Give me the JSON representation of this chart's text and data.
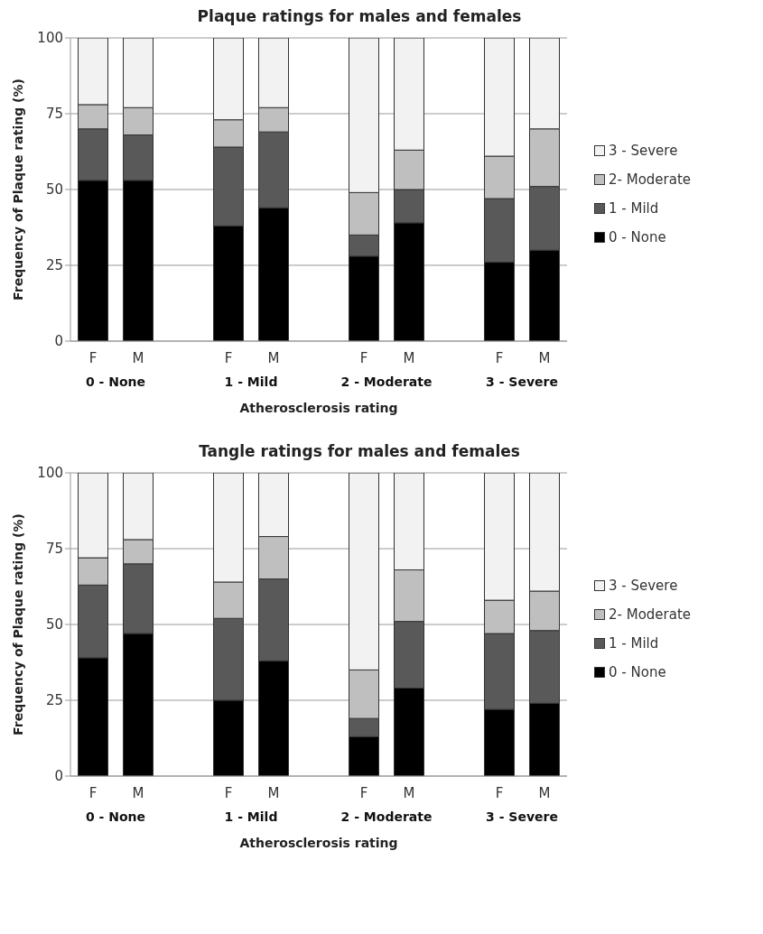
{
  "chart_data": [
    {
      "type": "bar",
      "title": "Plaque  ratings for males and females",
      "xlabel": "Atherosclerosis rating",
      "ylabel": "Frequency of Plaque rating (%)",
      "categories": [
        "F",
        "M",
        "F",
        "M",
        "F",
        "M",
        "F",
        "M"
      ],
      "stacked": true,
      "ylim": [
        0,
        100
      ],
      "yticks": [
        0,
        25,
        50,
        75,
        100
      ],
      "grid": "y",
      "legend": "right",
      "annotations": [
        "0 - None",
        "1 - Mild",
        "2 - Moderate",
        "3 - Severe"
      ],
      "series": [
        {
          "name": "0 - None",
          "color": "#000000",
          "values": [
            53,
            53,
            38,
            44,
            28,
            39,
            26,
            30
          ]
        },
        {
          "name": "1 - Mild",
          "color": "#595959",
          "values": [
            17,
            15,
            26,
            25,
            7,
            11,
            21,
            21
          ]
        },
        {
          "name": "2- Moderate",
          "color": "#bfbfbf",
          "values": [
            8,
            9,
            9,
            8,
            14,
            13,
            14,
            19
          ]
        },
        {
          "name": "3 - Severe",
          "color": "#f2f2f2",
          "values": [
            22,
            23,
            27,
            23,
            51,
            37,
            39,
            30
          ]
        }
      ]
    },
    {
      "type": "bar",
      "title": "Tangle  ratings for males and females",
      "xlabel": "Atherosclerosis rating",
      "ylabel": "Frequency of Plaque rating (%)",
      "categories": [
        "F",
        "M",
        "F",
        "M",
        "F",
        "M",
        "F",
        "M"
      ],
      "stacked": true,
      "ylim": [
        0,
        100
      ],
      "yticks": [
        0,
        25,
        50,
        75,
        100
      ],
      "grid": "y",
      "legend": "right",
      "annotations": [
        "0 - None",
        "1 - Mild",
        "2 - Moderate",
        "3 - Severe"
      ],
      "series": [
        {
          "name": "0 - None",
          "color": "#000000",
          "values": [
            39,
            47,
            25,
            38,
            13,
            29,
            22,
            24
          ]
        },
        {
          "name": "1 - Mild",
          "color": "#595959",
          "values": [
            24,
            23,
            27,
            27,
            6,
            22,
            25,
            24
          ]
        },
        {
          "name": "2- Moderate",
          "color": "#bfbfbf",
          "values": [
            9,
            8,
            12,
            14,
            16,
            17,
            11,
            13
          ]
        },
        {
          "name": "3 - Severe",
          "color": "#f2f2f2",
          "values": [
            28,
            22,
            36,
            21,
            65,
            32,
            42,
            39
          ]
        }
      ]
    }
  ]
}
